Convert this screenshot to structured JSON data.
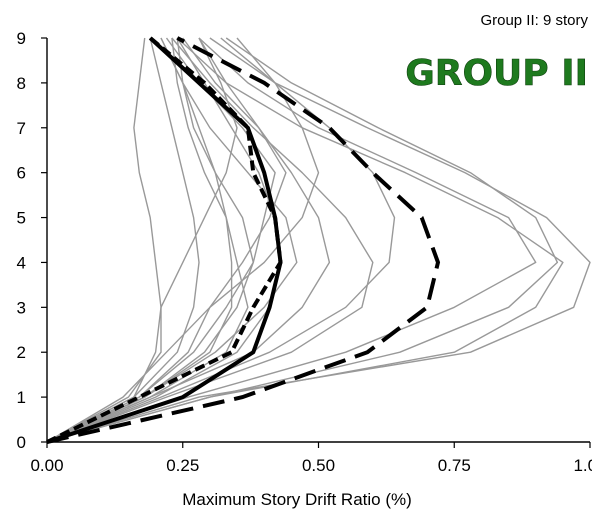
{
  "chart_data": {
    "type": "line",
    "corner_label": "Group II: 9 story",
    "group_label": "GROUP II",
    "xlabel": "Maximum Story Drift Ratio (%)",
    "ylabel": "",
    "xlim": [
      0,
      1.0
    ],
    "ylim": [
      0,
      9
    ],
    "x_ticks": [
      "0.00",
      "0.25",
      "0.50",
      "0.75",
      "1.00"
    ],
    "y_ticks": [
      "0",
      "1",
      "2",
      "3",
      "4",
      "5",
      "6",
      "7",
      "8",
      "9"
    ],
    "grid": false,
    "colors": {
      "records": "#999999",
      "median": "#000000",
      "dashed": "#000000",
      "group_label": "#1e7a1e"
    },
    "record_series": [
      [
        0,
        0.15,
        0.21,
        0.21,
        0.2,
        0.19,
        0.17,
        0.16,
        0.17,
        0.18
      ],
      [
        0,
        0.16,
        0.24,
        0.27,
        0.28,
        0.27,
        0.25,
        0.23,
        0.21,
        0.19
      ],
      [
        0,
        0.18,
        0.3,
        0.34,
        0.34,
        0.33,
        0.31,
        0.28,
        0.25,
        0.21
      ],
      [
        0,
        0.2,
        0.35,
        0.41,
        0.43,
        0.42,
        0.39,
        0.34,
        0.29,
        0.24
      ],
      [
        0,
        0.17,
        0.26,
        0.3,
        0.36,
        0.41,
        0.44,
        0.39,
        0.31,
        0.25
      ],
      [
        0,
        0.19,
        0.38,
        0.47,
        0.52,
        0.5,
        0.45,
        0.39,
        0.33,
        0.28
      ],
      [
        0,
        0.22,
        0.45,
        0.58,
        0.6,
        0.55,
        0.47,
        0.38,
        0.3,
        0.23
      ],
      [
        0,
        0.21,
        0.41,
        0.55,
        0.63,
        0.64,
        0.6,
        0.52,
        0.42,
        0.32
      ],
      [
        0,
        0.26,
        0.55,
        0.75,
        0.9,
        0.85,
        0.68,
        0.5,
        0.37,
        0.28
      ],
      [
        0,
        0.3,
        0.75,
        0.9,
        0.95,
        0.83,
        0.66,
        0.47,
        0.33,
        0.24
      ],
      [
        0,
        0.3,
        0.65,
        0.85,
        0.94,
        0.9,
        0.78,
        0.61,
        0.45,
        0.33
      ],
      [
        0,
        0.28,
        0.78,
        0.97,
        1.0,
        0.92,
        0.77,
        0.59,
        0.42,
        0.3
      ],
      [
        0,
        0.16,
        0.2,
        0.21,
        0.25,
        0.29,
        0.33,
        0.35,
        0.32,
        0.28
      ],
      [
        0,
        0.14,
        0.22,
        0.3,
        0.4,
        0.47,
        0.5,
        0.47,
        0.42,
        0.35
      ],
      [
        0,
        0.18,
        0.31,
        0.4,
        0.46,
        0.44,
        0.37,
        0.3,
        0.25,
        0.21
      ],
      [
        0,
        0.17,
        0.27,
        0.33,
        0.38,
        0.4,
        0.42,
        0.36,
        0.28,
        0.22
      ],
      [
        0,
        0.19,
        0.33,
        0.37,
        0.35,
        0.33,
        0.29,
        0.26,
        0.24,
        0.23
      ],
      [
        0,
        0.18,
        0.29,
        0.35,
        0.38,
        0.36,
        0.31,
        0.27,
        0.25,
        0.24
      ]
    ],
    "median": [
      0,
      0.25,
      0.38,
      0.41,
      0.43,
      0.42,
      0.4,
      0.37,
      0.28,
      0.19
    ],
    "dashed_lower": [
      0,
      0.17,
      0.34,
      0.38,
      0.43,
      0.42,
      0.38,
      0.37,
      0.29,
      0.19
    ],
    "dashed_upper": [
      0,
      0.36,
      0.59,
      0.7,
      0.72,
      0.69,
      0.6,
      0.52,
      0.4,
      0.24
    ]
  }
}
